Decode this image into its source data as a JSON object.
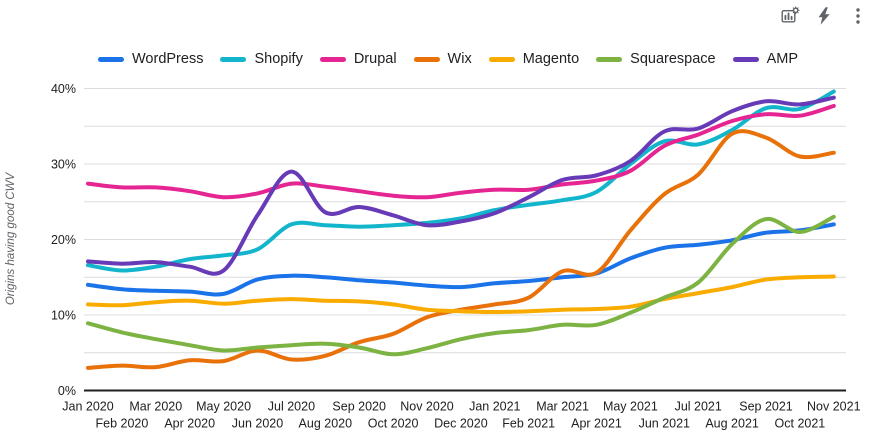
{
  "toolbar": {
    "icons": [
      {
        "id": "chart-settings-icon",
        "label": "chart settings"
      },
      {
        "id": "lightning-icon",
        "label": "quick actions"
      },
      {
        "id": "kebab-menu-icon",
        "label": "more options"
      }
    ]
  },
  "y_axis": {
    "title": "Origins having good CWV",
    "tick_labels": [
      "0%",
      "10%",
      "20%",
      "30%",
      "40%"
    ],
    "tick_values": [
      0,
      10,
      20,
      30,
      40
    ]
  },
  "chart_data": {
    "type": "line",
    "title": "",
    "ylabel": "Origins having good CWV",
    "ylim": [
      0,
      40
    ],
    "grid": "horizontal lines every 5%, light gray; solid black baseline at 0%",
    "legend_position": "top",
    "x": [
      "Jan 2020",
      "Feb 2020",
      "Mar 2020",
      "Apr 2020",
      "May 2020",
      "Jun 2020",
      "Jul 2020",
      "Aug 2020",
      "Sep 2020",
      "Oct 2020",
      "Nov 2020",
      "Dec 2020",
      "Jan 2021",
      "Feb 2021",
      "Mar 2021",
      "Apr 2021",
      "May 2021",
      "Jun 2021",
      "Jul 2021",
      "Aug 2021",
      "Sep 2021",
      "Oct 2021",
      "Nov 2021"
    ],
    "series": [
      {
        "name": "WordPress",
        "color": "#1a73e8",
        "values": [
          14.0,
          13.4,
          13.2,
          13.1,
          12.8,
          14.7,
          15.2,
          15.0,
          14.6,
          14.3,
          13.9,
          13.7,
          14.2,
          14.5,
          15.0,
          15.5,
          17.5,
          18.9,
          19.3,
          19.9,
          20.9,
          21.2,
          22.0
        ]
      },
      {
        "name": "Shopify",
        "color": "#12b5cb",
        "values": [
          16.6,
          15.9,
          16.4,
          17.4,
          17.9,
          18.7,
          22.0,
          21.9,
          21.7,
          21.9,
          22.2,
          22.8,
          23.9,
          24.6,
          25.2,
          26.3,
          30.0,
          33.0,
          32.6,
          34.5,
          37.4,
          37.3,
          39.6
        ]
      },
      {
        "name": "Drupal",
        "color": "#e52592",
        "values": [
          27.4,
          26.9,
          26.9,
          26.4,
          25.6,
          26.1,
          27.4,
          27.0,
          26.4,
          25.8,
          25.6,
          26.2,
          26.6,
          26.6,
          27.3,
          27.8,
          29.1,
          32.4,
          33.9,
          35.7,
          36.6,
          36.4,
          37.7
        ]
      },
      {
        "name": "Wix",
        "color": "#e8710a",
        "values": [
          3.0,
          3.3,
          3.1,
          4.0,
          3.9,
          5.3,
          4.1,
          4.6,
          6.4,
          7.5,
          9.7,
          10.7,
          11.4,
          12.3,
          15.8,
          15.6,
          21.2,
          26.0,
          28.6,
          34.0,
          33.5,
          31.0,
          31.5
        ]
      },
      {
        "name": "Magento",
        "color": "#f9ab00",
        "values": [
          11.4,
          11.3,
          11.7,
          11.9,
          11.5,
          11.9,
          12.1,
          11.9,
          11.8,
          11.4,
          10.7,
          10.5,
          10.4,
          10.5,
          10.7,
          10.8,
          11.1,
          12.1,
          12.9,
          13.7,
          14.7,
          15.0,
          15.1
        ]
      },
      {
        "name": "Squarespace",
        "color": "#7cb342",
        "values": [
          8.9,
          7.7,
          6.8,
          6.0,
          5.3,
          5.7,
          6.0,
          6.2,
          5.7,
          4.8,
          5.6,
          6.8,
          7.6,
          8.0,
          8.7,
          8.7,
          10.3,
          12.3,
          14.3,
          19.4,
          22.7,
          21.0,
          23.0
        ]
      },
      {
        "name": "AMP",
        "color": "#673ab7",
        "values": [
          17.1,
          16.8,
          17.0,
          16.4,
          15.9,
          23.2,
          29.0,
          23.6,
          24.3,
          23.2,
          21.9,
          22.4,
          23.5,
          25.6,
          27.9,
          28.5,
          30.4,
          34.3,
          34.7,
          37.0,
          38.3,
          37.9,
          38.8
        ]
      }
    ]
  },
  "style": {
    "grid_color": "#dadce0",
    "baseline_color": "#1f1f1f",
    "tick_label_color": "#202124",
    "axis_title_color": "#5f6368",
    "icon_color": "#5f6368"
  }
}
